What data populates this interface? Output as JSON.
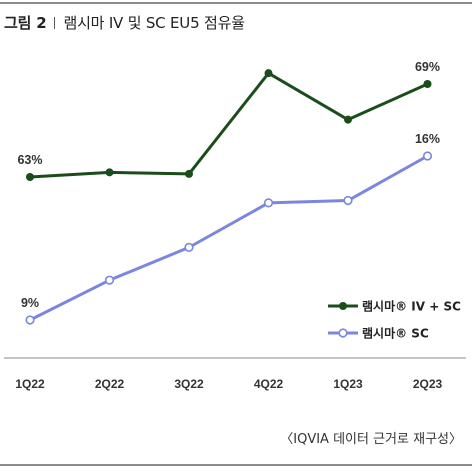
{
  "header": {
    "figure_label": "그림 2",
    "title": "램시마 IV 및 SC EU5 점유율"
  },
  "source_note": "〈IQVIA 데이터 근거로 재구성〉",
  "chart_data": {
    "type": "line",
    "categories": [
      "1Q22",
      "2Q22",
      "3Q22",
      "4Q22",
      "1Q23",
      "2Q23"
    ],
    "series": [
      {
        "name": "램시마® IV + SC",
        "values": [
          63,
          63.3,
          63.2,
          69.7,
          66.7,
          69
        ],
        "color": "#1b4d1b",
        "marker": "filled-circle",
        "value_labels": [
          "63%",
          "",
          "",
          "",
          "",
          "69%"
        ]
      },
      {
        "name": "램시마® SC",
        "values": [
          9,
          10.7,
          12.1,
          14.0,
          14.1,
          16
        ],
        "color": "#7b86e0",
        "marker": "hollow-circle",
        "value_labels": [
          "9%",
          "",
          "",
          "",
          "",
          "16%"
        ]
      }
    ],
    "legend_position": "right",
    "grid": false,
    "axis_line": true
  }
}
